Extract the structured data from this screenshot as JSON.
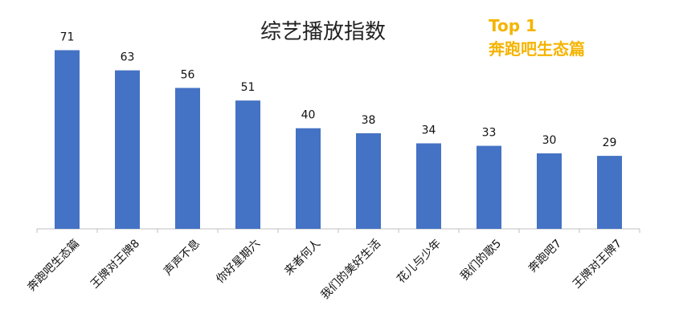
{
  "chart_data": {
    "type": "bar",
    "title": "综艺播放指数",
    "categories": [
      "奔跑吧生态篇",
      "王牌对王牌8",
      "声声不息",
      "你好星期六",
      "来者何人",
      "我们的美好生活",
      "花儿与少年",
      "我们的歌5",
      "奔跑吧7",
      "王牌对王牌7"
    ],
    "values": [
      71,
      63,
      56,
      51,
      40,
      38,
      34,
      33,
      30,
      29
    ],
    "ylim": [
      0,
      75
    ],
    "xlabel": "",
    "ylabel": "",
    "grid": false,
    "bar_color": "#4472C4",
    "axis_color": "#BFBFBF",
    "data_labels": true
  },
  "badge": {
    "line1": "Top 1",
    "line2": "奔跑吧生态篇",
    "color": "#F5B400"
  }
}
